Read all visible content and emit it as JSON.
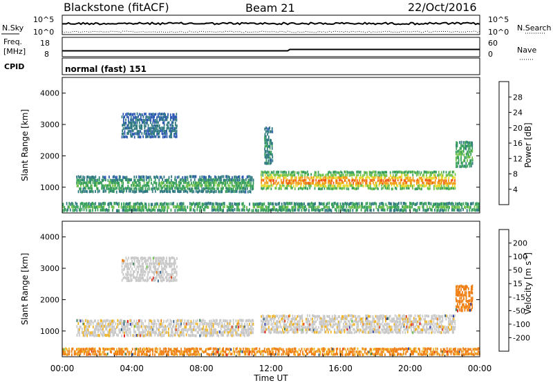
{
  "header": {
    "radar": "Blackstone (fitACF)",
    "beam": "Beam 21",
    "date": "22/Oct/2016"
  },
  "small_panels": {
    "nsky_label": "N.Sky",
    "nsky_ticks": [
      "10^5",
      "10^0"
    ],
    "nsearch_label": "N.Search",
    "freq_label": "Freq.",
    "freq_unit": "[MHz]",
    "freq_ticks": [
      "18",
      "8"
    ],
    "nave_label": "Nave",
    "nave_ticks": [
      "60",
      "0"
    ],
    "cpid_label": "CPID",
    "cpid_text": "normal (fast) 151"
  },
  "time_axis": {
    "ticks": [
      "00:00",
      "04:00",
      "08:00",
      "12:00",
      "16:00",
      "20:00",
      "00:00"
    ],
    "label": "Time UT"
  },
  "chart_data": [
    {
      "type": "heatmap",
      "title": "",
      "xlabel": "Time UT",
      "ylabel": "Slant Range [km]",
      "xlim": [
        0,
        24
      ],
      "ylim": [
        180,
        4500
      ],
      "yticks": [
        "1000",
        "2000",
        "3000",
        "4000"
      ],
      "colorbar": {
        "label": "Power [dB]",
        "ticks": [
          "28",
          "24",
          "20",
          "16",
          "12",
          "8",
          "4"
        ],
        "range": [
          0,
          30
        ],
        "colors": [
          "#1f2fe6",
          "#2d59b3",
          "#2f7a80",
          "#36a05a",
          "#70c24a",
          "#e7d92a",
          "#f39c12",
          "#f05a11",
          "#e0101c"
        ]
      },
      "bands": [
        {
          "t": [
            0.8,
            11.0
          ],
          "r": [
            800,
            1350
          ],
          "level": 8,
          "core": 14
        },
        {
          "t": [
            11.4,
            22.6
          ],
          "r": [
            900,
            1500
          ],
          "level": 12,
          "core": 25
        },
        {
          "t": [
            3.4,
            6.6
          ],
          "r": [
            2550,
            3350
          ],
          "level": 6,
          "core": 8
        },
        {
          "t": [
            11.6,
            12.1
          ],
          "r": [
            1700,
            2900
          ],
          "level": 8,
          "core": 10
        },
        {
          "t": [
            22.6,
            23.6
          ],
          "r": [
            1600,
            2450
          ],
          "level": 10,
          "core": 14
        },
        {
          "t": [
            0.0,
            24.0
          ],
          "r": [
            200,
            500
          ],
          "level": 10,
          "core": 14
        }
      ]
    },
    {
      "type": "heatmap",
      "title": "",
      "xlabel": "Time UT",
      "ylabel": "Slant Range [km]",
      "xlim": [
        0,
        24
      ],
      "ylim": [
        180,
        4500
      ],
      "yticks": [
        "1000",
        "2000",
        "3000",
        "4000"
      ],
      "colorbar": {
        "label": "Velocity [m s^-1]",
        "ticks": [
          "200",
          "100",
          "50",
          "15",
          "-15",
          "-50",
          "-100",
          "-200"
        ],
        "colors": [
          "#1f2fa6",
          "#2d5e8a",
          "#2f7a50",
          "#5fc03a",
          "#c8c8c8",
          "#f0b323",
          "#f07d10",
          "#e33c10",
          "#e00a0a"
        ]
      },
      "bands": [
        {
          "t": [
            0.8,
            11.0
          ],
          "r": [
            800,
            1350
          ],
          "velocity": -5
        },
        {
          "t": [
            11.4,
            22.6
          ],
          "r": [
            900,
            1500
          ],
          "velocity": -5
        },
        {
          "t": [
            3.4,
            6.6
          ],
          "r": [
            2550,
            3350
          ],
          "velocity": 0
        },
        {
          "t": [
            22.6,
            23.6
          ],
          "r": [
            1600,
            2450
          ],
          "velocity": -60
        },
        {
          "t": [
            0.0,
            24.0
          ],
          "r": [
            200,
            450
          ],
          "velocity": -40
        }
      ]
    }
  ]
}
